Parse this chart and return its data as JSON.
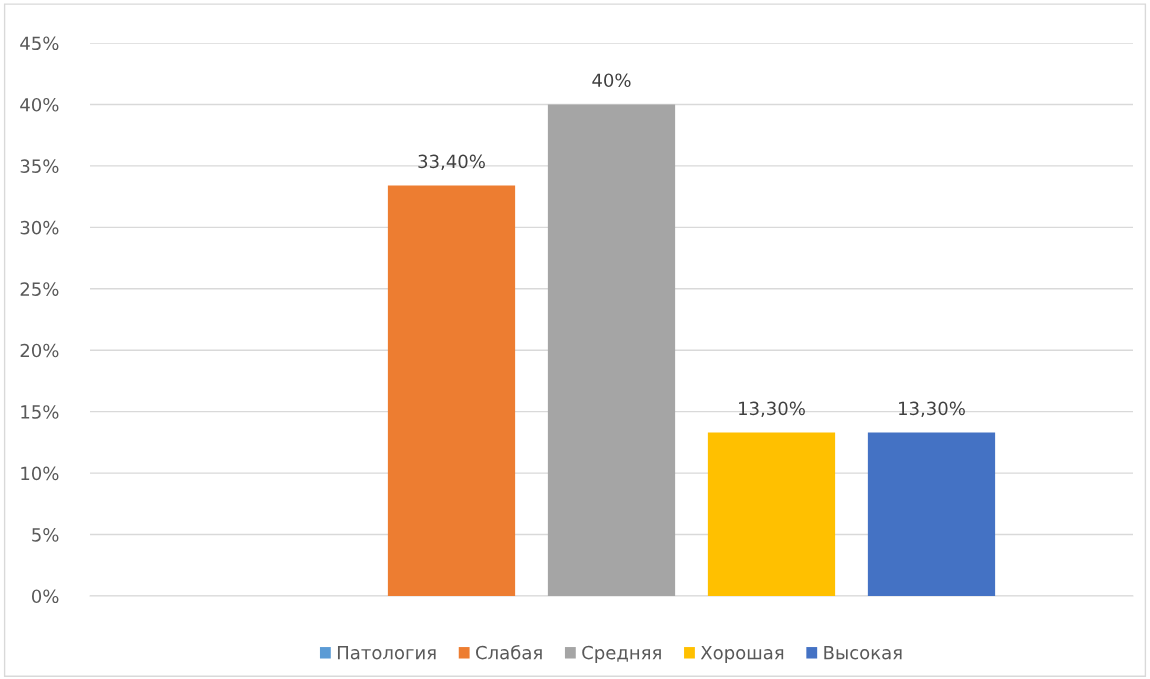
{
  "chart_data": {
    "type": "bar",
    "categories": [
      null
    ],
    "series": [
      {
        "name": "Патология",
        "color": "#5b9bd5",
        "values": [
          0
        ],
        "value_labels": [
          null
        ]
      },
      {
        "name": "Слабая",
        "color": "#ed7d31",
        "values": [
          33.4
        ],
        "value_labels": [
          "33,40%"
        ]
      },
      {
        "name": "Средняя",
        "color": "#a5a5a5",
        "values": [
          40
        ],
        "value_labels": [
          "40%"
        ]
      },
      {
        "name": "Хорошая",
        "color": "#ffc000",
        "values": [
          13.3
        ],
        "value_labels": [
          "13,30%"
        ]
      },
      {
        "name": "Высокая",
        "color": "#4472c4",
        "values": [
          13.3
        ],
        "value_labels": [
          "13,30%"
        ]
      }
    ],
    "ylim": [
      0,
      45
    ],
    "yticks": [
      {
        "value": 0,
        "label": "0%"
      },
      {
        "value": 5,
        "label": "5%"
      },
      {
        "value": 10,
        "label": "10%"
      },
      {
        "value": 15,
        "label": "15%"
      },
      {
        "value": 20,
        "label": "20%"
      },
      {
        "value": 25,
        "label": "25%"
      },
      {
        "value": 30,
        "label": "30%"
      },
      {
        "value": 35,
        "label": "35%"
      },
      {
        "value": 40,
        "label": "40%"
      },
      {
        "value": 45,
        "label": "45%"
      }
    ],
    "grid": "y",
    "legend": "bottom"
  }
}
